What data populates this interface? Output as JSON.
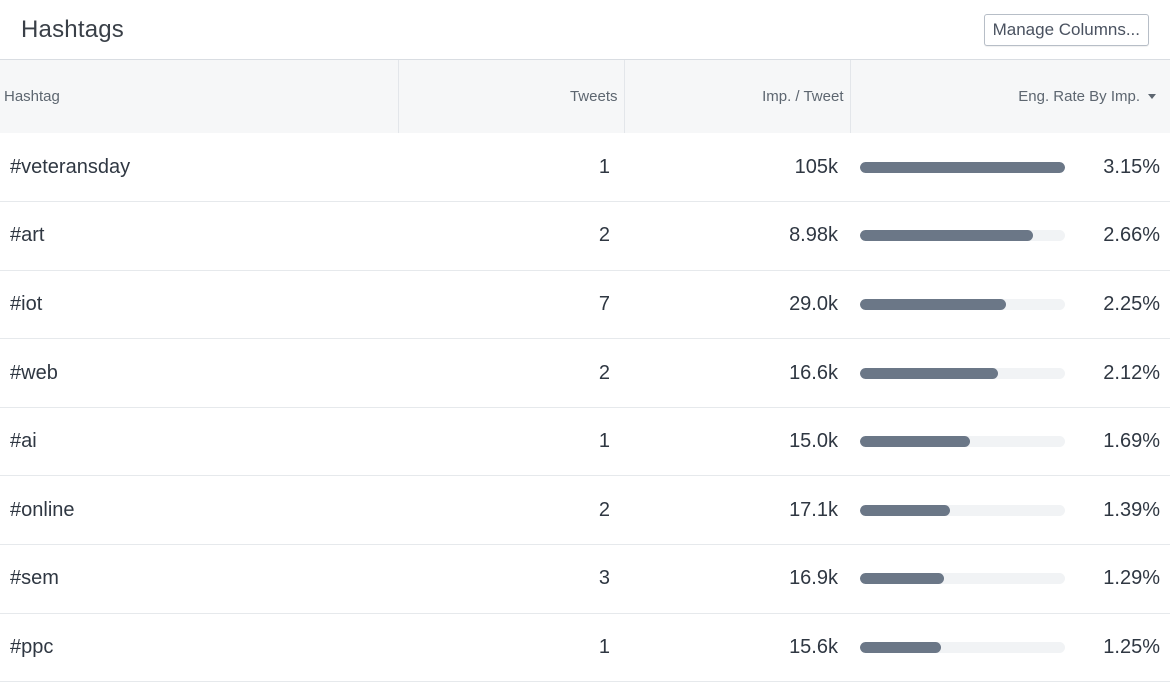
{
  "panel": {
    "title": "Hashtags",
    "manage_columns_label": "Manage Columns..."
  },
  "columns": {
    "hashtag": "Hashtag",
    "tweets": "Tweets",
    "imp_per_tweet": "Imp. / Tweet",
    "eng_rate": "Eng. Rate By Imp."
  },
  "sort": {
    "column": "eng_rate",
    "direction": "descending"
  },
  "colors": {
    "bar_fill": "#6b7787",
    "bar_track": "#f1f3f5",
    "header_bg": "#f6f7f8"
  },
  "rows": [
    {
      "hashtag": "#veteransday",
      "tweets": "1",
      "imp_per_tweet": "105k",
      "eng_rate": "3.15%",
      "eng_rate_value": 3.15
    },
    {
      "hashtag": "#art",
      "tweets": "2",
      "imp_per_tweet": "8.98k",
      "eng_rate": "2.66%",
      "eng_rate_value": 2.66
    },
    {
      "hashtag": "#iot",
      "tweets": "7",
      "imp_per_tweet": "29.0k",
      "eng_rate": "2.25%",
      "eng_rate_value": 2.25
    },
    {
      "hashtag": "#web",
      "tweets": "2",
      "imp_per_tweet": "16.6k",
      "eng_rate": "2.12%",
      "eng_rate_value": 2.12
    },
    {
      "hashtag": "#ai",
      "tweets": "1",
      "imp_per_tweet": "15.0k",
      "eng_rate": "1.69%",
      "eng_rate_value": 1.69
    },
    {
      "hashtag": "#online",
      "tweets": "2",
      "imp_per_tweet": "17.1k",
      "eng_rate": "1.39%",
      "eng_rate_value": 1.39
    },
    {
      "hashtag": "#sem",
      "tweets": "3",
      "imp_per_tweet": "16.9k",
      "eng_rate": "1.29%",
      "eng_rate_value": 1.29
    },
    {
      "hashtag": "#ppc",
      "tweets": "1",
      "imp_per_tweet": "15.6k",
      "eng_rate": "1.25%",
      "eng_rate_value": 1.25
    }
  ]
}
